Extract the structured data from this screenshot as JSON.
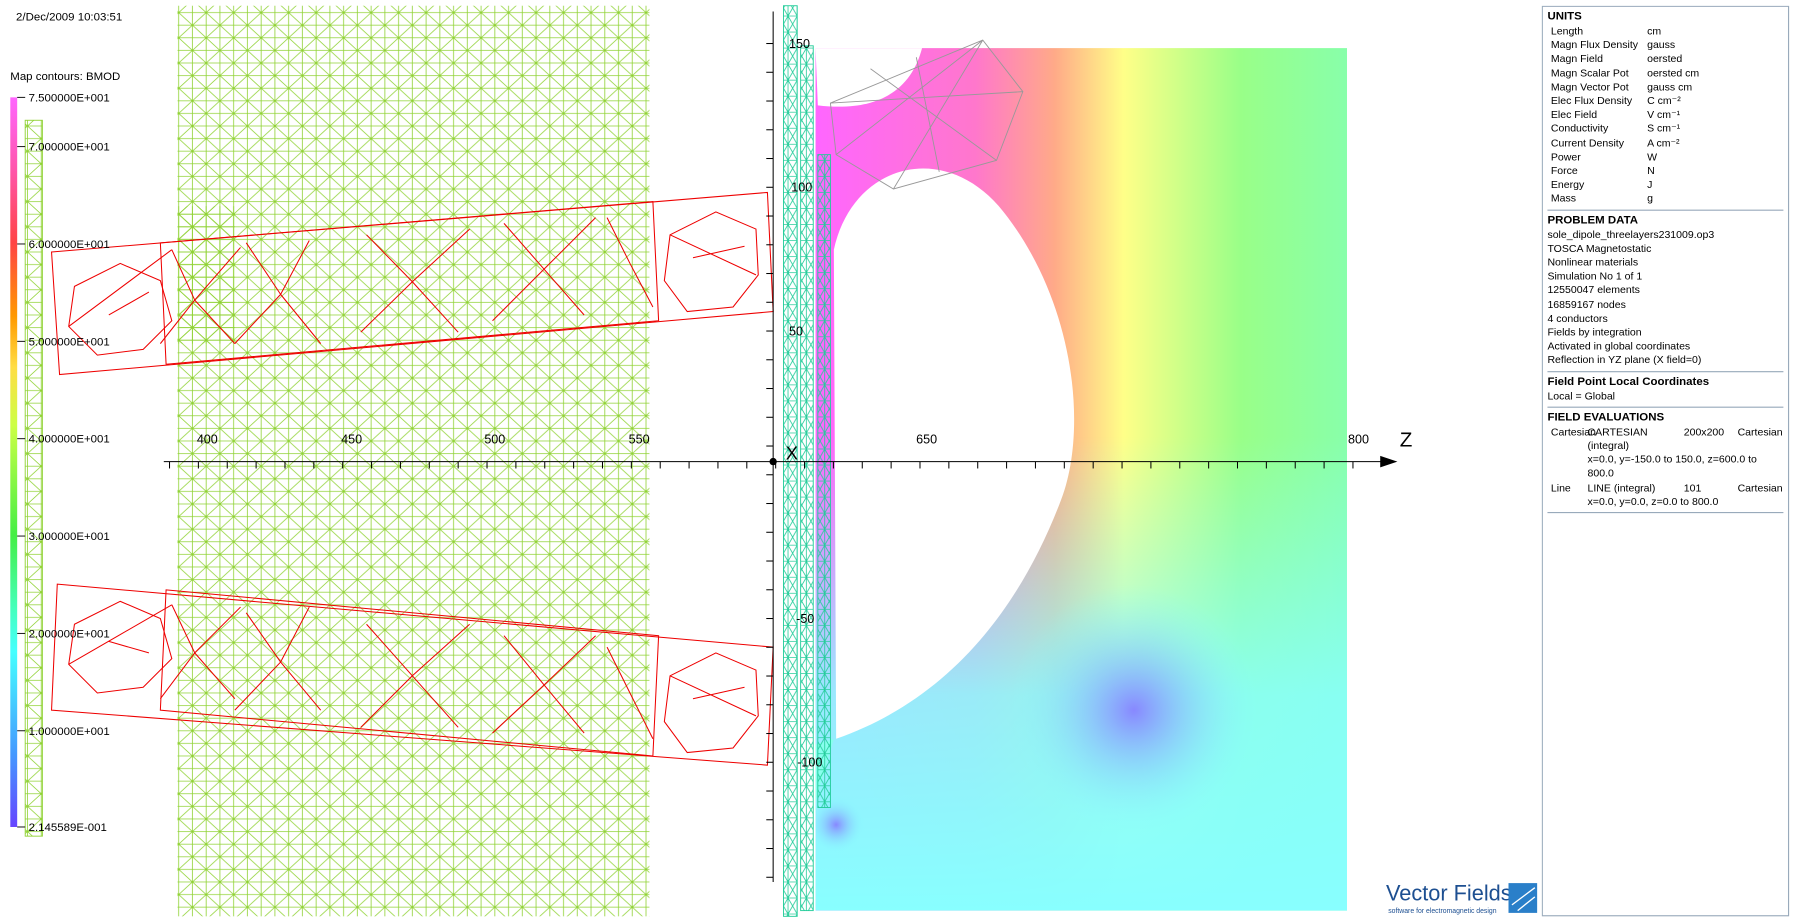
{
  "timestamp": "2/Dec/2009 10:03:51",
  "legend": {
    "title": "Map contours: BMOD",
    "labels": [
      "7.500000E+001",
      "7.000000E+001",
      "6.000000E+001",
      "5.000000E+001",
      "4.000000E+001",
      "3.000000E+001",
      "2.000000E+001",
      "1.000000E+001",
      "2.145589E-001"
    ]
  },
  "axes": {
    "z_ticks": [
      "400",
      "450",
      "500",
      "550",
      "650",
      "800"
    ],
    "y_ticks": [
      "150",
      "100",
      "50",
      "-50",
      "-100"
    ],
    "z_label": "Z",
    "x_label": "X"
  },
  "info": {
    "units": {
      "title": "UNITS",
      "rows": [
        [
          "Length",
          "cm"
        ],
        [
          "Magn Flux Density",
          "gauss"
        ],
        [
          "Magn Field",
          "oersted"
        ],
        [
          "Magn Scalar Pot",
          "oersted cm"
        ],
        [
          "Magn Vector Pot",
          "gauss cm"
        ],
        [
          "Elec Flux Density",
          "C cm⁻²"
        ],
        [
          "Elec Field",
          "V cm⁻¹"
        ],
        [
          "Conductivity",
          "S cm⁻¹"
        ],
        [
          "Current Density",
          "A cm⁻²"
        ],
        [
          "Power",
          "W"
        ],
        [
          "Force",
          "N"
        ],
        [
          "Energy",
          "J"
        ],
        [
          "Mass",
          "g"
        ]
      ]
    },
    "problem": {
      "title": "PROBLEM DATA",
      "lines": [
        "sole_dipole_threelayers231009.op3",
        "TOSCA Magnetostatic",
        "Nonlinear materials",
        "Simulation No 1 of 1",
        "12550047 elements",
        "16859167 nodes",
        "4 conductors",
        "Fields by integration",
        "Activated in global coordinates",
        "Reflection in YZ plane (X field=0)"
      ]
    },
    "local": {
      "title": "Field Point Local Coordinates",
      "lines": [
        "Local = Global"
      ]
    },
    "evaluations": {
      "title": "FIELD EVALUATIONS",
      "rows": [
        {
          "kind": "Cartesian",
          "method": "CARTESIAN (integral)",
          "size": "200x200",
          "system": "Cartesian",
          "range": "x=0.0, y=-150.0 to 150.0, z=600.0 to 800.0"
        },
        {
          "kind": "Line",
          "method": "LINE (integral)",
          "size": "101",
          "system": "Cartesian",
          "range": "x=0.0, y=0.0, z=0.0 to 800.0"
        }
      ]
    }
  },
  "logo": {
    "name": "Vector Fields",
    "tagline": "software for electromagnetic design"
  }
}
